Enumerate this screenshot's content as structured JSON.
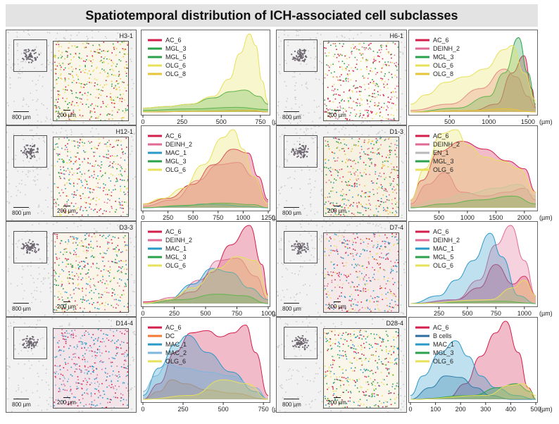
{
  "title": "Spatiotemporal distribution of ICH-associated cell subclasses",
  "colors": {
    "AC_6": "#d21f4c",
    "MGL_3": "#2aa14a",
    "MGL_5": "#2aa14a",
    "OLG_6": "#e7e05a",
    "OLG_8": "#e7c43a",
    "DEINH_2": "#e06a96",
    "MAC_1": "#2a98c8",
    "EN_1": "#b8b8b8",
    "DC": "#f07a35",
    "MAC_2": "#7fb6dc",
    "B cells": "#2a6f9e"
  },
  "panels": [
    {
      "tissue_label": "H3-1",
      "scale_large": "800 µm",
      "scale_small": "200 µm",
      "inset_bg": "#fbf6ea",
      "inset_dots": [
        "#2aa14a",
        "#e7e05a",
        "#e7c43a",
        "#d21f4c"
      ]
    },
    {
      "tissue_label": "H6-1",
      "scale_large": "800 µm",
      "scale_small": "200 µm",
      "inset_bg": "#fdfbf5",
      "inset_dots": [
        "#d21f4c",
        "#2aa14a",
        "#e7e05a",
        "#e06a96"
      ]
    },
    {
      "tissue_label": "H12-1",
      "scale_large": "800 µm",
      "scale_small": "200 µm",
      "inset_bg": "#fbf7ec",
      "inset_dots": [
        "#d21f4c",
        "#e7e05a",
        "#2aa14a",
        "#2a98c8",
        "#e06a96"
      ]
    },
    {
      "tissue_label": "D1-3",
      "scale_large": "800 µm",
      "scale_small": "200 µm",
      "inset_bg": "#f7f1e2",
      "inset_dots": [
        "#2a98c8",
        "#e7c43a",
        "#d21f4c",
        "#e06a96",
        "#2aa14a"
      ]
    },
    {
      "tissue_label": "D3-3",
      "scale_large": "800 µm",
      "scale_small": "200 µm",
      "inset_bg": "#faf5e8",
      "inset_dots": [
        "#d21f4c",
        "#2a98c8",
        "#e7e05a",
        "#2aa14a",
        "#e06a96"
      ]
    },
    {
      "tissue_label": "D7-4",
      "scale_large": "800 µm",
      "scale_small": "200 µm",
      "inset_bg": "#f5e9ea",
      "inset_dots": [
        "#d21f4c",
        "#2a98c8",
        "#e06a96",
        "#e7e05a"
      ]
    },
    {
      "tissue_label": "D14-4",
      "scale_large": "800 µm",
      "scale_small": "200 µm",
      "inset_bg": "#f2e4e9",
      "inset_dots": [
        "#d21f4c",
        "#2a98c8",
        "#7fb6dc",
        "#e06a96"
      ]
    },
    {
      "tissue_label": "D28-4",
      "scale_large": "800 µm",
      "scale_small": "200 µm",
      "inset_bg": "#faf6ea",
      "inset_dots": [
        "#d21f4c",
        "#2a98c8",
        "#e7e05a",
        "#2aa14a"
      ]
    }
  ],
  "chart_data": [
    {
      "type": "area",
      "xlim": [
        0,
        800
      ],
      "unit": "(µm)",
      "xticks": [
        0,
        250,
        500,
        750
      ],
      "legend": [
        "AC_6",
        "MGL_3",
        "MGL_5",
        "OLG_6",
        "OLG_8"
      ],
      "legend_position": "top-left",
      "series": [
        {
          "name": "AC_6",
          "x": [
            0,
            400,
            650,
            800
          ],
          "y": [
            0.0,
            0.01,
            0.02,
            0.0
          ]
        },
        {
          "name": "MGL_3",
          "x": [
            0,
            150,
            300,
            450,
            560,
            650,
            740,
            800
          ],
          "y": [
            0.05,
            0.07,
            0.1,
            0.18,
            0.26,
            0.28,
            0.2,
            0.1
          ]
        },
        {
          "name": "MGL_5",
          "x": [
            0,
            300,
            600,
            800
          ],
          "y": [
            0.02,
            0.04,
            0.06,
            0.03
          ]
        },
        {
          "name": "OLG_6",
          "x": [
            0,
            150,
            300,
            450,
            550,
            620,
            680,
            720,
            760,
            800
          ],
          "y": [
            0.05,
            0.07,
            0.1,
            0.2,
            0.42,
            0.75,
            1.0,
            0.85,
            0.4,
            0.12
          ]
        },
        {
          "name": "OLG_8",
          "x": [
            0,
            400,
            700,
            800
          ],
          "y": [
            0.0,
            0.01,
            0.02,
            0.0
          ]
        }
      ]
    },
    {
      "type": "area",
      "xlim": [
        0,
        1600
      ],
      "unit": "(µm)",
      "xticks": [
        500,
        1000,
        1500
      ],
      "legend": [
        "AC_6",
        "DEINH_2",
        "MGL_3",
        "OLG_6",
        "OLG_8"
      ],
      "legend_position": "top-left",
      "series": [
        {
          "name": "AC_6",
          "x": [
            0,
            800,
            1100,
            1300,
            1450,
            1550,
            1600
          ],
          "y": [
            0.0,
            0.02,
            0.1,
            0.5,
            0.72,
            0.3,
            0.05
          ]
        },
        {
          "name": "DEINH_2",
          "x": [
            0,
            500,
            900,
            1200,
            1350,
            1500,
            1600
          ],
          "y": [
            0.02,
            0.1,
            0.3,
            0.55,
            0.45,
            0.2,
            0.05
          ]
        },
        {
          "name": "MGL_3",
          "x": [
            0,
            600,
            1000,
            1200,
            1380,
            1500,
            1600
          ],
          "y": [
            0.0,
            0.05,
            0.2,
            0.5,
            0.95,
            0.5,
            0.1
          ]
        },
        {
          "name": "OLG_6",
          "x": [
            0,
            200,
            450,
            700,
            950,
            1200,
            1300,
            1450,
            1600
          ],
          "y": [
            0.1,
            0.22,
            0.38,
            0.45,
            0.55,
            0.8,
            0.85,
            0.5,
            0.15
          ]
        },
        {
          "name": "OLG_8",
          "x": [
            0,
            800,
            1200,
            1600
          ],
          "y": [
            0.0,
            0.02,
            0.04,
            0.0
          ]
        }
      ]
    },
    {
      "type": "area",
      "xlim": [
        0,
        1250
      ],
      "unit": "(µm)",
      "xticks": [
        0,
        250,
        500,
        750,
        1000,
        1250
      ],
      "legend": [
        "AC_6",
        "DEINH_2",
        "MAC_1",
        "MGL_3",
        "OLG_6"
      ],
      "legend_position": "top-left",
      "series": [
        {
          "name": "AC_6",
          "x": [
            0,
            250,
            500,
            700,
            900,
            1050,
            1150,
            1250
          ],
          "y": [
            0.05,
            0.12,
            0.3,
            0.55,
            0.75,
            0.7,
            0.4,
            0.1
          ]
        },
        {
          "name": "DEINH_2",
          "x": [
            0,
            300,
            550,
            750,
            950,
            1100,
            1250
          ],
          "y": [
            0.02,
            0.1,
            0.35,
            0.55,
            0.58,
            0.4,
            0.08
          ]
        },
        {
          "name": "MAC_1",
          "x": [
            0,
            400,
            600,
            800,
            1000,
            1250
          ],
          "y": [
            0.0,
            0.02,
            0.05,
            0.04,
            0.02,
            0.0
          ]
        },
        {
          "name": "MGL_3",
          "x": [
            0,
            400,
            800,
            1100,
            1250
          ],
          "y": [
            0.0,
            0.03,
            0.06,
            0.04,
            0.0
          ]
        },
        {
          "name": "OLG_6",
          "x": [
            0,
            200,
            400,
            600,
            800,
            900,
            1000,
            1100,
            1250
          ],
          "y": [
            0.05,
            0.12,
            0.25,
            0.55,
            0.9,
            1.0,
            0.75,
            0.4,
            0.05
          ]
        }
      ]
    },
    {
      "type": "area",
      "xlim": [
        0,
        2200
      ],
      "unit": "(µm)",
      "xticks": [
        500,
        1000,
        1500,
        2000
      ],
      "legend": [
        "AC_6",
        "DEINH_2",
        "EN_1",
        "MGL_3",
        "OLG_6"
      ],
      "legend_position": "top-left",
      "series": [
        {
          "name": "AC_6",
          "x": [
            0,
            200,
            500,
            900,
            1300,
            1700,
            2000,
            2200
          ],
          "y": [
            0.1,
            0.35,
            0.72,
            0.85,
            0.75,
            0.6,
            0.5,
            0.2
          ]
        },
        {
          "name": "DEINH_2",
          "x": [
            0,
            300,
            600,
            900,
            1300,
            1700,
            2000,
            2200
          ],
          "y": [
            0.05,
            0.3,
            0.45,
            0.2,
            0.15,
            0.2,
            0.25,
            0.1
          ]
        },
        {
          "name": "EN_1",
          "x": [
            0,
            500,
            1000,
            1500,
            1900,
            2200
          ],
          "y": [
            0.02,
            0.1,
            0.18,
            0.25,
            0.3,
            0.15
          ]
        },
        {
          "name": "MGL_3",
          "x": [
            0,
            600,
            1200,
            1800,
            2200
          ],
          "y": [
            0.0,
            0.05,
            0.1,
            0.15,
            0.05
          ]
        },
        {
          "name": "OLG_6",
          "x": [
            0,
            250,
            550,
            800,
            1000,
            1300,
            1600,
            1900,
            2200
          ],
          "y": [
            0.1,
            0.5,
            0.95,
            1.0,
            0.8,
            0.65,
            0.6,
            0.5,
            0.2
          ]
        }
      ]
    },
    {
      "type": "area",
      "xlim": [
        0,
        1000
      ],
      "unit": "(µm)",
      "xticks": [
        0,
        250,
        500,
        750,
        1000
      ],
      "legend": [
        "AC_6",
        "DEINH_2",
        "MAC_1",
        "MGL_3",
        "OLG_6"
      ],
      "legend_position": "top-left",
      "series": [
        {
          "name": "AC_6",
          "x": [
            0,
            200,
            400,
            550,
            700,
            850,
            950,
            1000
          ],
          "y": [
            0.02,
            0.05,
            0.15,
            0.4,
            0.75,
            1.0,
            0.5,
            0.1
          ]
        },
        {
          "name": "DEINH_2",
          "x": [
            0,
            250,
            450,
            600,
            750,
            900,
            1000
          ],
          "y": [
            0.0,
            0.08,
            0.3,
            0.55,
            0.58,
            0.35,
            0.05
          ]
        },
        {
          "name": "MAC_1",
          "x": [
            0,
            200,
            400,
            550,
            700,
            850,
            1000
          ],
          "y": [
            0.0,
            0.05,
            0.25,
            0.45,
            0.4,
            0.2,
            0.05
          ]
        },
        {
          "name": "MGL_3",
          "x": [
            0,
            300,
            600,
            800,
            1000
          ],
          "y": [
            0.0,
            0.05,
            0.12,
            0.1,
            0.0
          ]
        },
        {
          "name": "OLG_6",
          "x": [
            0,
            200,
            400,
            600,
            750,
            900,
            1000
          ],
          "y": [
            0.0,
            0.05,
            0.2,
            0.45,
            0.6,
            0.55,
            0.1
          ]
        }
      ]
    },
    {
      "type": "area",
      "xlim": [
        0,
        1100
      ],
      "unit": "(µm)",
      "xticks": [
        250,
        500,
        750,
        1000
      ],
      "legend": [
        "AC_6",
        "DEINH_2",
        "MAC_1",
        "MGL_5",
        "OLG_6"
      ],
      "legend_position": "top-left",
      "series": [
        {
          "name": "AC_6",
          "x": [
            0,
            400,
            600,
            750,
            900,
            1000,
            1100
          ],
          "y": [
            0.0,
            0.05,
            0.2,
            0.5,
            0.25,
            0.35,
            0.1
          ]
        },
        {
          "name": "DEINH_2",
          "x": [
            0,
            400,
            600,
            750,
            880,
            1000,
            1100
          ],
          "y": [
            0.0,
            0.05,
            0.3,
            0.75,
            1.0,
            0.55,
            0.1
          ]
        },
        {
          "name": "MAC_1",
          "x": [
            0,
            250,
            400,
            550,
            700,
            800,
            950,
            1100
          ],
          "y": [
            0.0,
            0.1,
            0.3,
            0.55,
            0.9,
            0.6,
            0.1,
            0.0
          ]
        },
        {
          "name": "MGL_5",
          "x": [
            0,
            500,
            800,
            1100
          ],
          "y": [
            0.0,
            0.02,
            0.03,
            0.0
          ]
        },
        {
          "name": "OLG_6",
          "x": [
            0,
            700,
            900,
            1000,
            1100
          ],
          "y": [
            0.0,
            0.05,
            0.2,
            0.3,
            0.1
          ]
        }
      ]
    },
    {
      "type": "area",
      "xlim": [
        0,
        780
      ],
      "unit": "(µm)",
      "xticks": [
        0,
        250,
        500,
        750
      ],
      "legend": [
        "AC_6",
        "DC",
        "MAC_1",
        "MAC_2",
        "OLG_6"
      ],
      "legend_position": "top-left",
      "series": [
        {
          "name": "AC_6",
          "x": [
            0,
            100,
            200,
            300,
            400,
            480,
            560,
            640,
            700,
            780
          ],
          "y": [
            0.0,
            0.2,
            0.6,
            0.85,
            0.88,
            0.8,
            0.85,
            0.95,
            0.6,
            0.05
          ]
        },
        {
          "name": "DC",
          "x": [
            0,
            100,
            180,
            260,
            400,
            550,
            780
          ],
          "y": [
            0.0,
            0.1,
            0.25,
            0.2,
            0.12,
            0.08,
            0.0
          ]
        },
        {
          "name": "MAC_1",
          "x": [
            0,
            100,
            200,
            280,
            400,
            550,
            700,
            780
          ],
          "y": [
            0.05,
            0.4,
            0.7,
            0.82,
            0.6,
            0.35,
            0.1,
            0.0
          ]
        },
        {
          "name": "MAC_2",
          "x": [
            0,
            80,
            150,
            250,
            400,
            550,
            700,
            780
          ],
          "y": [
            0.1,
            0.3,
            0.45,
            0.4,
            0.35,
            0.3,
            0.15,
            0.0
          ]
        },
        {
          "name": "OLG_6",
          "x": [
            0,
            300,
            500,
            650,
            780
          ],
          "y": [
            0.0,
            0.05,
            0.25,
            0.2,
            0.0
          ]
        }
      ]
    },
    {
      "type": "area",
      "xlim": [
        0,
        500
      ],
      "unit": "(µm)",
      "xticks": [
        0,
        100,
        200,
        300,
        400,
        500
      ],
      "legend": [
        "AC_6",
        "B cells",
        "MAC_1",
        "MGL_3",
        "OLG_6"
      ],
      "legend_position": "top-left",
      "series": [
        {
          "name": "AC_6",
          "x": [
            0,
            150,
            220,
            280,
            340,
            380,
            430,
            470,
            500
          ],
          "y": [
            0.0,
            0.02,
            0.2,
            0.55,
            0.85,
            1.0,
            0.6,
            0.15,
            0.0
          ]
        },
        {
          "name": "B cells",
          "x": [
            0,
            80,
            140,
            200,
            260,
            320,
            400,
            500
          ],
          "y": [
            0.0,
            0.15,
            0.3,
            0.28,
            0.15,
            0.05,
            0.0,
            0.0
          ]
        },
        {
          "name": "MAC_1",
          "x": [
            0,
            50,
            120,
            180,
            230,
            280,
            340,
            420,
            500
          ],
          "y": [
            0.05,
            0.3,
            0.6,
            0.75,
            0.55,
            0.3,
            0.15,
            0.05,
            0.0
          ]
        },
        {
          "name": "MGL_3",
          "x": [
            0,
            250,
            350,
            420,
            480,
            500
          ],
          "y": [
            0.0,
            0.05,
            0.15,
            0.2,
            0.1,
            0.0
          ]
        },
        {
          "name": "OLG_6",
          "x": [
            0,
            300,
            400,
            450,
            500
          ],
          "y": [
            0.0,
            0.05,
            0.18,
            0.2,
            0.05
          ]
        }
      ]
    }
  ]
}
